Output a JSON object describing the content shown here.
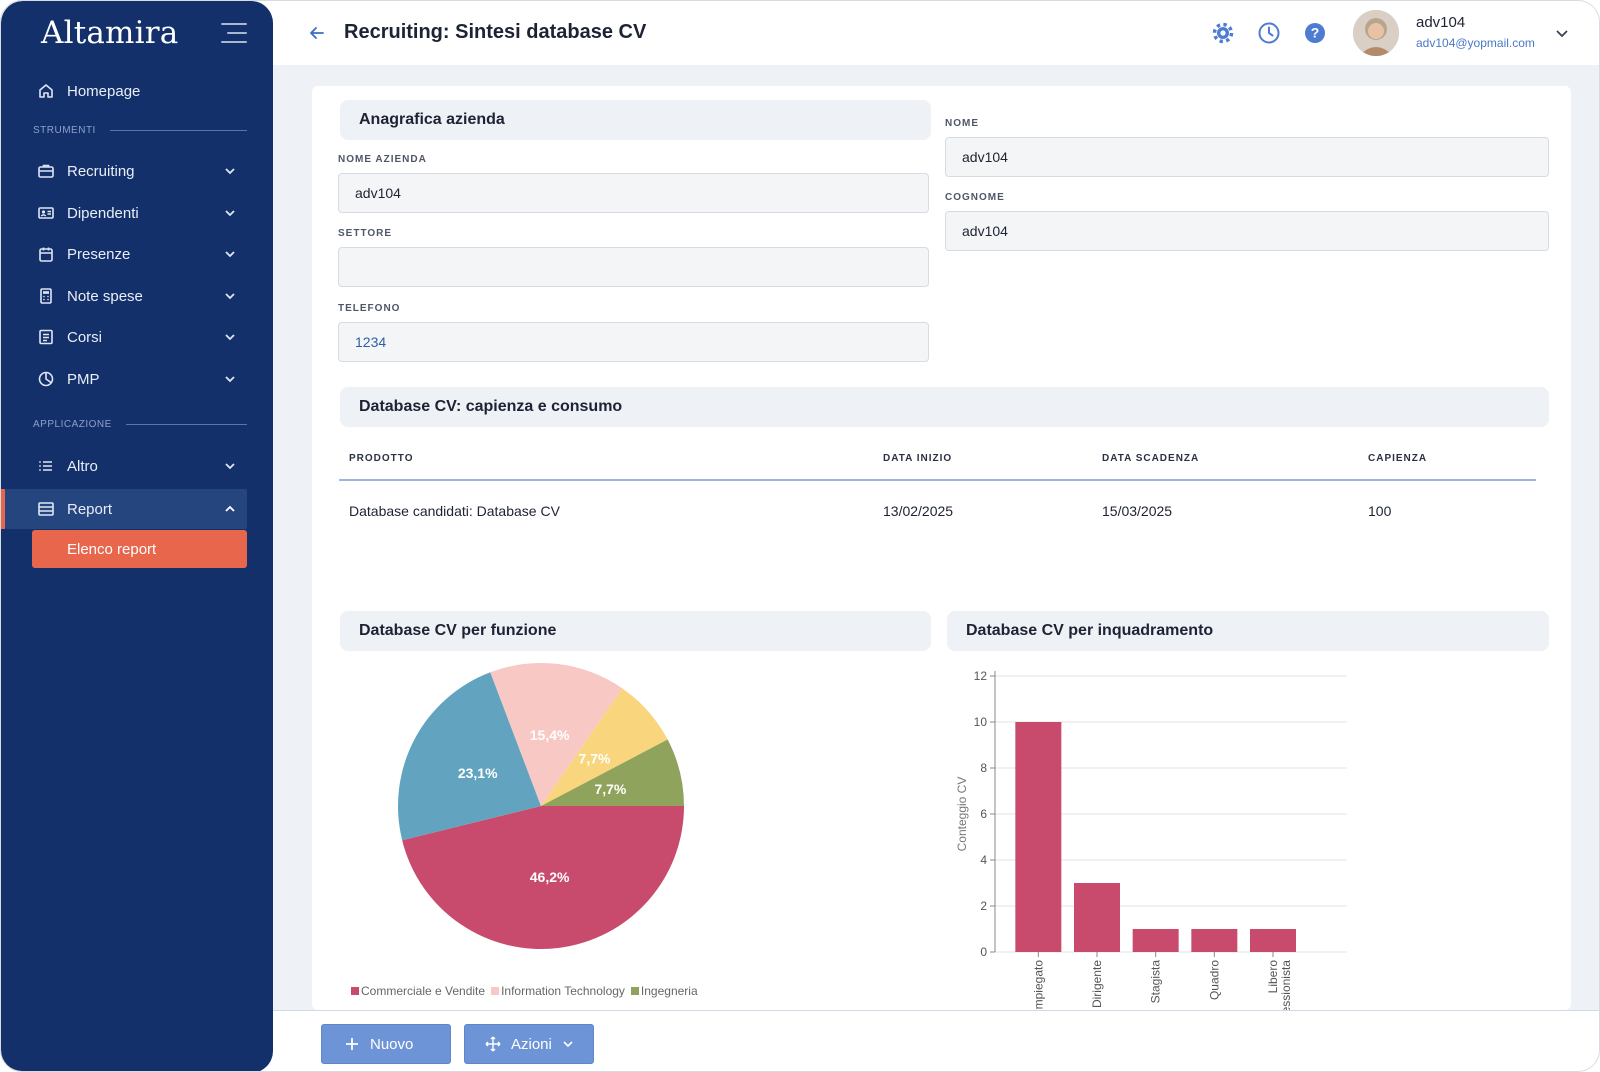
{
  "app": {
    "logo": "Altamira"
  },
  "sidebar": {
    "home": {
      "label": "Homepage"
    },
    "section_tools": "STRUMENTI",
    "tools": [
      {
        "label": "Recruiting",
        "icon": "briefcase-icon"
      },
      {
        "label": "Dipendenti",
        "icon": "id-card-icon"
      },
      {
        "label": "Presenze",
        "icon": "calendar-icon"
      },
      {
        "label": "Note spese",
        "icon": "calculator-icon"
      },
      {
        "label": "Corsi",
        "icon": "book-icon"
      },
      {
        "label": "PMP",
        "icon": "pie-chart-icon"
      }
    ],
    "section_app": "APPLICAZIONE",
    "app_items": [
      {
        "label": "Altro",
        "icon": "list-icon"
      },
      {
        "label": "Report",
        "icon": "report-icon"
      }
    ],
    "sub_item": "Elenco report"
  },
  "header": {
    "title": "Recruiting: Sintesi database CV",
    "user_name": "adv104",
    "user_email": "adv104@yopmail.com"
  },
  "company": {
    "section_title": "Anagrafica azienda",
    "name_label": "NOME AZIENDA",
    "name_value": "adv104",
    "sector_label": "SETTORE",
    "sector_value": "",
    "phone_label": "TELEFONO",
    "phone_value": "1234"
  },
  "person": {
    "first_label": "NOME",
    "first_value": "adv104",
    "last_label": "COGNOME",
    "last_value": "adv104"
  },
  "db": {
    "section_title": "Database CV: capienza e consumo",
    "columns": [
      "PRODOTTO",
      "DATA INIZIO",
      "DATA SCADENZA",
      "CAPIENZA"
    ],
    "rows": [
      [
        "Database candidati: Database CV",
        "13/02/2025",
        "15/03/2025",
        "100"
      ]
    ]
  },
  "charts": {
    "pie_title": "Database CV per funzione",
    "bar_title": "Database CV per inquadramento"
  },
  "chart_data": [
    {
      "type": "pie",
      "title": "Database CV per funzione",
      "slices": [
        {
          "label": "Commerciale e Vendite",
          "value": 46.2,
          "display": "46,2%",
          "color": "#c84b6e"
        },
        {
          "label": "",
          "value": 23.1,
          "display": "23,1%",
          "color": "#62a3bf"
        },
        {
          "label": "Information Technology",
          "value": 15.4,
          "display": "15,4%",
          "color": "#f8c8c4"
        },
        {
          "label": "",
          "value": 7.7,
          "display": "7,7%",
          "color": "#f9d67e"
        },
        {
          "label": "Ingegneria",
          "value": 7.7,
          "display": "7,7%",
          "color": "#8fa35c"
        }
      ],
      "legend": [
        "Commerciale e Vendite",
        "Information Technology",
        "Ingegneria"
      ]
    },
    {
      "type": "bar",
      "title": "Database CV per inquadramento",
      "categories": [
        "Impiegato",
        "Dirigente",
        "Stagista",
        "Quadro",
        "Libero professionista"
      ],
      "category_display": [
        "Impiegato",
        "Dirigente",
        "Stagista",
        "Quadro",
        "Libero\nessionista"
      ],
      "values": [
        10,
        3,
        1,
        1,
        1
      ],
      "ylabel": "Conteggio CV",
      "ylim": [
        0,
        12
      ],
      "yticks": [
        0,
        2,
        4,
        6,
        8,
        10,
        12
      ],
      "color": "#c84b6e",
      "grid": true
    }
  ],
  "actions": {
    "new_label": "Nuovo",
    "actions_label": "Azioni"
  },
  "colors": {
    "sidebar": "#13306a",
    "accent": "#e8664b",
    "primary_button": "#6d94d6"
  }
}
